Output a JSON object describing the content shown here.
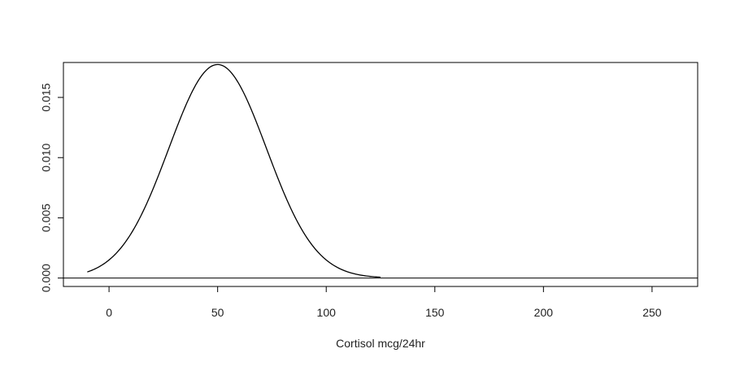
{
  "chart_data": {
    "type": "line",
    "title": "",
    "xlabel": "Cortisol mcg/24hr",
    "ylabel": "",
    "xlim": [
      -21,
      271
    ],
    "ylim": [
      -0.0007,
      0.0179
    ],
    "x_ticks": [
      0,
      50,
      100,
      150,
      200,
      250
    ],
    "y_ticks": [
      0.0,
      0.005,
      0.01,
      0.015
    ],
    "x_tick_labels": [
      "0",
      "50",
      "100",
      "150",
      "200",
      "250"
    ],
    "y_tick_labels": [
      "0.000",
      "0.005",
      "0.010",
      "0.015"
    ],
    "grid": false,
    "legend": "none",
    "reference_line_y": 0,
    "series": [
      {
        "curve": "normal-density",
        "mean": 50,
        "sd": 22.5,
        "x_range": [
          -10,
          125
        ],
        "color": "#000000"
      }
    ]
  }
}
